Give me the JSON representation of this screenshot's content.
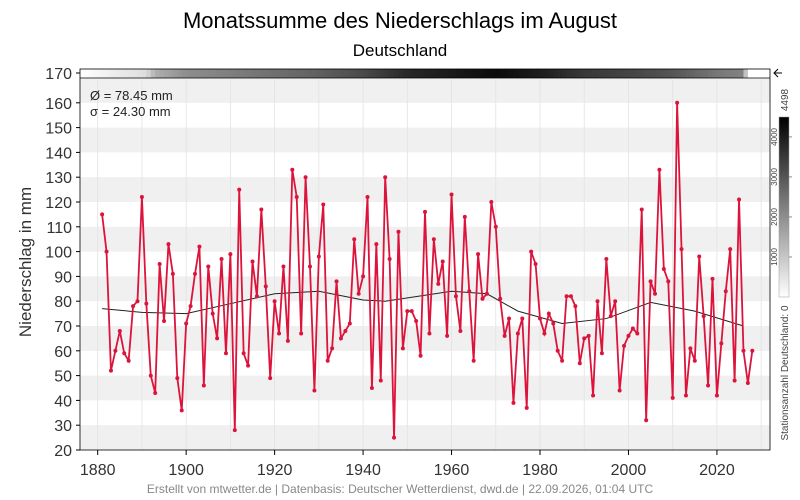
{
  "chart_data": {
    "type": "line",
    "title": "Monatssumme des Niederschlags im August",
    "subtitle": "Deutschland",
    "ylabel": "Niederschlag in mm",
    "xlim": [
      1876,
      2032
    ],
    "ylim": [
      20,
      170
    ],
    "x_ticks": [
      1880,
      1900,
      1920,
      1940,
      1960,
      1980,
      2000,
      2020
    ],
    "y_ticks": [
      20,
      30,
      40,
      50,
      60,
      70,
      80,
      90,
      100,
      110,
      120,
      130,
      140,
      150,
      160,
      170
    ],
    "grid": true,
    "colors": {
      "series": "#dc143c",
      "smooth": "#222222",
      "band": "#f0f0f0"
    },
    "stats": {
      "mean": "Ø = 78.45 mm",
      "sd": "σ = 24.30 mm"
    },
    "start_year": 1881,
    "values": [
      115,
      100,
      52,
      60,
      68,
      59,
      56,
      78,
      80,
      122,
      79,
      50,
      43,
      95,
      72,
      103,
      91,
      49,
      36,
      71,
      78,
      91,
      102,
      46,
      94,
      75,
      65,
      97,
      59,
      99,
      28,
      125,
      59,
      54,
      96,
      82,
      117,
      86,
      49,
      80,
      67,
      94,
      64,
      133,
      122,
      67,
      130,
      94,
      44,
      98,
      119,
      56,
      61,
      88,
      65,
      68,
      71,
      105,
      83,
      90,
      122,
      45,
      103,
      48,
      130,
      97,
      25,
      108,
      61,
      76,
      76,
      72,
      58,
      116,
      67,
      105,
      87,
      96,
      66,
      123,
      82,
      68,
      114,
      84,
      56,
      99,
      81,
      83,
      120,
      110,
      81,
      66,
      73,
      39,
      67,
      73,
      37,
      100,
      95,
      73,
      67,
      75,
      71,
      60,
      56,
      82,
      82,
      78,
      55,
      65,
      66,
      42,
      80,
      59,
      97,
      74,
      80,
      44,
      62,
      66,
      69,
      67,
      117,
      32,
      88,
      83,
      133,
      93,
      88,
      41,
      160,
      101,
      42,
      61,
      56,
      98,
      74,
      46,
      89,
      42,
      63,
      84,
      101,
      48,
      121,
      60,
      47,
      60
    ],
    "smooth": [
      [
        1881,
        77
      ],
      [
        1890,
        75.5
      ],
      [
        1900,
        75
      ],
      [
        1910,
        79
      ],
      [
        1920,
        83
      ],
      [
        1930,
        84
      ],
      [
        1940,
        80.5
      ],
      [
        1945,
        80
      ],
      [
        1960,
        84
      ],
      [
        1968,
        83
      ],
      [
        1975,
        76
      ],
      [
        1985,
        71
      ],
      [
        1995,
        73
      ],
      [
        2005,
        79.5
      ],
      [
        2015,
        76
      ],
      [
        2026,
        70
      ]
    ],
    "station_count": {
      "label": "Stationsanzahl Deutschland: 0",
      "max": 4498,
      "ticks": [
        1000,
        2000,
        3000,
        4000
      ],
      "strip": [
        [
          1876,
          0
        ],
        [
          1891,
          600
        ],
        [
          1893,
          1400
        ],
        [
          1900,
          2000
        ],
        [
          1915,
          2400
        ],
        [
          1930,
          2800
        ],
        [
          1940,
          3200
        ],
        [
          1950,
          3800
        ],
        [
          1970,
          4300
        ],
        [
          1980,
          4000
        ],
        [
          1990,
          3500
        ],
        [
          2000,
          3300
        ],
        [
          2010,
          3000
        ],
        [
          2020,
          2400
        ],
        [
          2026,
          2200
        ],
        [
          2027,
          0
        ]
      ]
    }
  },
  "footer": "Erstellt von mtwetter.de | Datenbasis: Deutscher Wetterdienst, dwd.de | 22.09.2026, 01:04 UTC"
}
